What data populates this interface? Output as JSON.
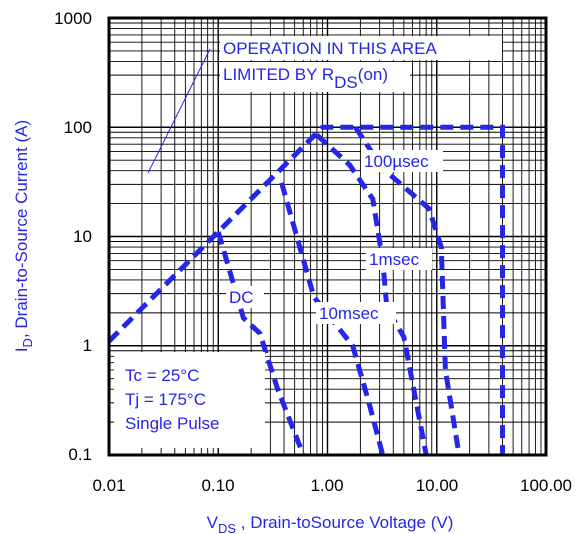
{
  "chart_data": {
    "type": "line",
    "x_scale": "log",
    "y_scale": "log",
    "xlim": [
      0.01,
      100
    ],
    "ylim": [
      0.1,
      1000
    ],
    "grid": true,
    "x_ticks": [
      "0.01",
      "0.10",
      "1.00",
      "10.00",
      "100.00"
    ],
    "y_ticks": [
      "0.1",
      "1",
      "10",
      "100",
      "1000"
    ],
    "xlabel": {
      "main": "V",
      "sub": "DS",
      "rest": " , Drain-toSource Voltage (V)"
    },
    "ylabel": {
      "main": "I",
      "sub": "D",
      "rest": ",  Drain-to-Source Current (A)"
    },
    "annotation": {
      "line1": "OPERATION IN THIS AREA",
      "line2_main": "LIMITED BY R",
      "line2_sub": "DS",
      "line2_tail": "(on)"
    },
    "info_box": [
      "Tc = 25°C",
      "Tj = 175°C",
      "Single Pulse"
    ],
    "series": [
      {
        "name": "100µsec",
        "points": [
          [
            0.01,
            1.1
          ],
          [
            0.9,
            100
          ],
          [
            40,
            100
          ],
          [
            40,
            0.1
          ]
        ]
      },
      {
        "name": "1msec",
        "points": [
          [
            1.8,
            100
          ],
          [
            3.2,
            42
          ],
          [
            8.5,
            18
          ],
          [
            11,
            8
          ],
          [
            12,
            0.6
          ],
          [
            16,
            0.1
          ]
        ]
      },
      {
        "name": "10msec",
        "points": [
          [
            0.8,
            85
          ],
          [
            1.6,
            45
          ],
          [
            2.6,
            22
          ],
          [
            3.2,
            6
          ],
          [
            3.5,
            2.2
          ],
          [
            5,
            1.2
          ],
          [
            8,
            0.1
          ]
        ]
      },
      {
        "name": "DC",
        "points": [
          [
            0.1,
            11
          ],
          [
            0.17,
            1.8
          ],
          [
            0.24,
            1.3
          ],
          [
            0.35,
            0.4
          ],
          [
            0.6,
            0.1
          ]
        ]
      },
      {
        "name": "",
        "points": [
          [
            0.38,
            31
          ],
          [
            0.75,
            2.8
          ],
          [
            1.7,
            1.0
          ],
          [
            2.4,
            0.3
          ],
          [
            3.2,
            0.1
          ]
        ]
      }
    ]
  },
  "colors": {
    "curve": "#2626e6",
    "text_blue": "#2626e6",
    "grid": "#000000"
  }
}
